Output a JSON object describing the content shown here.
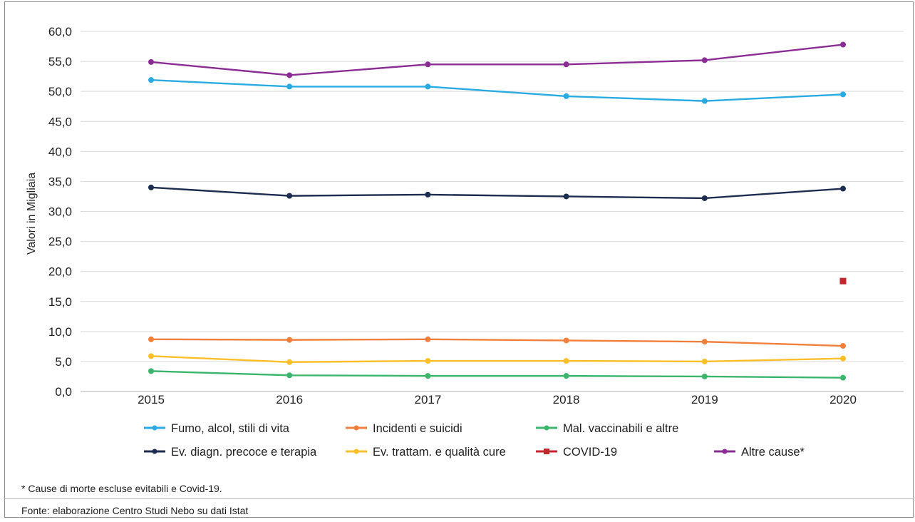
{
  "chart_data": {
    "type": "line",
    "categories": [
      "2015",
      "2016",
      "2017",
      "2018",
      "2019",
      "2020"
    ],
    "ylabel": "Valori in Migliaia",
    "ylim": [
      0,
      60
    ],
    "yticks": [
      "0,0",
      "5,0",
      "10,0",
      "15,0",
      "20,0",
      "25,0",
      "30,0",
      "35,0",
      "40,0",
      "45,0",
      "50,0",
      "55,0",
      "60,0"
    ],
    "grid": true,
    "legend_position": "bottom",
    "series": [
      {
        "name": "Fumo, alcol, stili di vita",
        "color": "#29abe2",
        "marker": "circle",
        "values": [
          51.9,
          50.8,
          50.8,
          49.2,
          48.4,
          49.5
        ]
      },
      {
        "name": "Incidenti e suicidi",
        "color": "#f07f3c",
        "marker": "circle",
        "values": [
          8.7,
          8.6,
          8.7,
          8.5,
          8.3,
          7.6
        ]
      },
      {
        "name": "Mal. vaccinabili e altre",
        "color": "#3bb56b",
        "marker": "circle",
        "values": [
          3.4,
          2.7,
          2.6,
          2.6,
          2.5,
          2.3
        ]
      },
      {
        "name": "Ev. diagn. precoce e terapia",
        "color": "#1c2d4f",
        "marker": "circle",
        "values": [
          34.0,
          32.6,
          32.8,
          32.5,
          32.2,
          33.8
        ]
      },
      {
        "name": "Ev. trattam. e qualità cure",
        "color": "#fbbf2a",
        "marker": "circle",
        "values": [
          5.9,
          4.9,
          5.1,
          5.1,
          5.0,
          5.5
        ]
      },
      {
        "name": "COVID-19",
        "color": "#c1272d",
        "marker": "square",
        "values": [
          null,
          null,
          null,
          null,
          null,
          18.4
        ]
      },
      {
        "name": "Altre cause*",
        "color": "#8b2c94",
        "marker": "circle",
        "values": [
          54.9,
          52.7,
          54.5,
          54.5,
          55.2,
          57.8
        ]
      }
    ]
  },
  "notes": {
    "footnote": "* Cause di morte escluse evitabili e Covid-19.",
    "source": "Fonte: elaborazione Centro Studi Nebo su dati Istat"
  }
}
